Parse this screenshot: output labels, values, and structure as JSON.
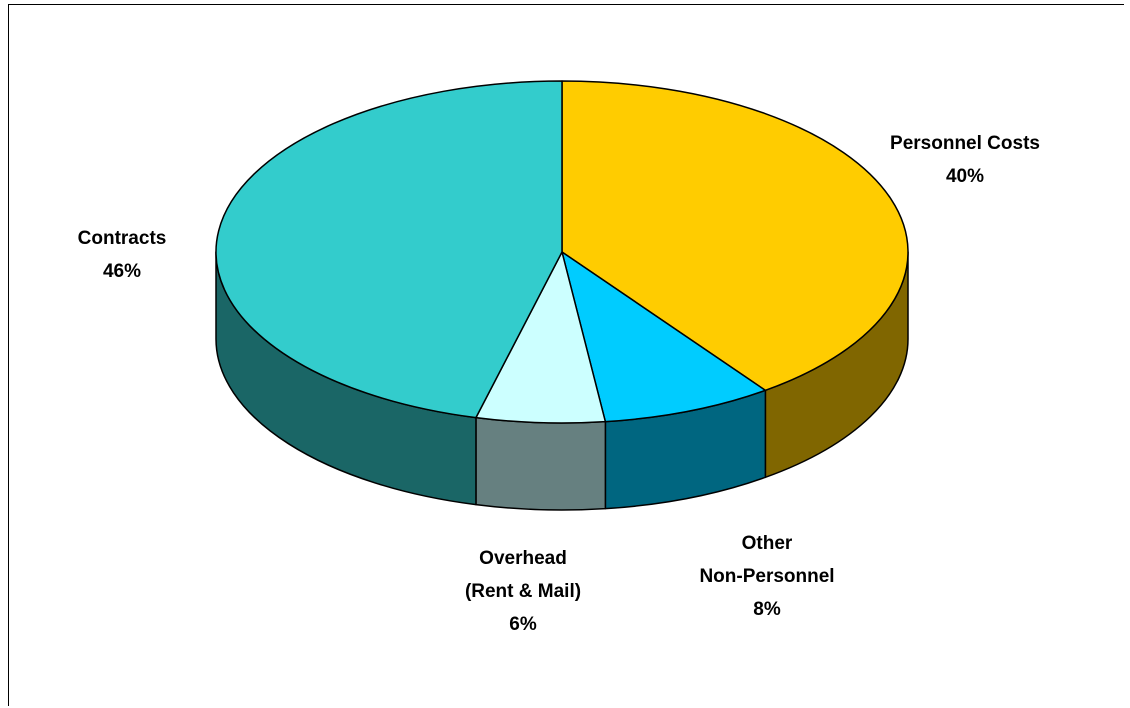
{
  "chart_data": {
    "type": "pie",
    "style": "3d",
    "slices": [
      {
        "name": "Personnel Costs",
        "value": 40,
        "label_lines": [
          "Personnel Costs",
          "40%"
        ],
        "color": "#FFCC00",
        "side_color": "#806600"
      },
      {
        "name": "Other Non-Personnel",
        "value": 8,
        "label_lines": [
          "Other",
          "Non-Personnel",
          "8%"
        ],
        "color": "#00CCFF",
        "side_color": "#006680"
      },
      {
        "name": "Overhead (Rent & Mail)",
        "value": 6,
        "label_lines": [
          "Overhead",
          "(Rent & Mail)",
          "6%"
        ],
        "color": "#CCFFFF",
        "side_color": "#668080"
      },
      {
        "name": "Contracts",
        "value": 46,
        "label_lines": [
          "Contracts",
          "46%"
        ],
        "color": "#33CCCC",
        "side_color": "#1A6666"
      }
    ],
    "legend": "none"
  }
}
